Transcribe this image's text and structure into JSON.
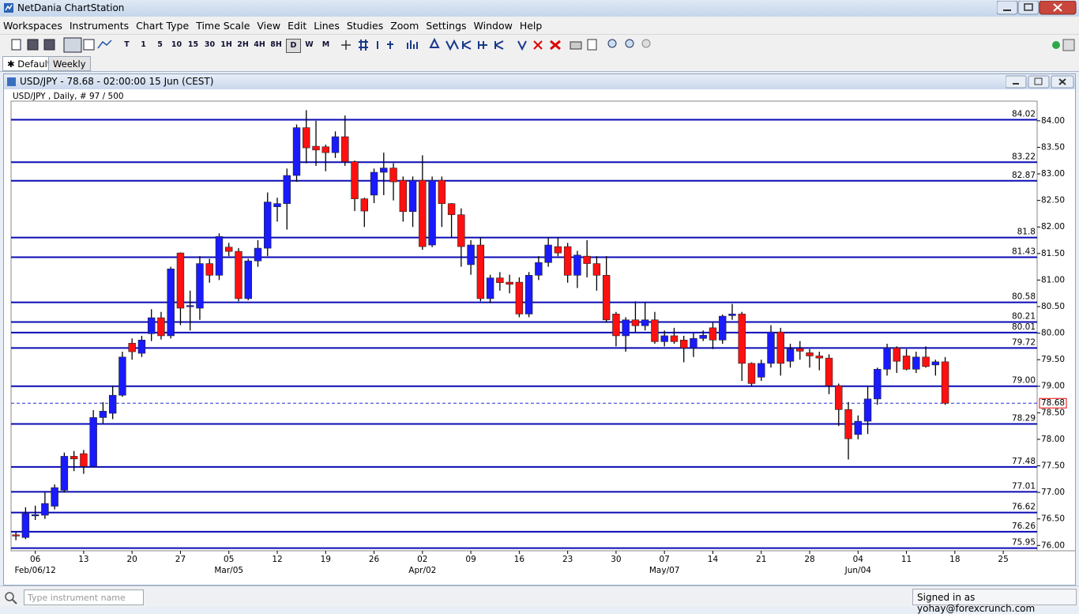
{
  "window": {
    "title": "NetDania ChartStation"
  },
  "menu": [
    "Workspaces",
    "Instruments",
    "Chart Type",
    "Time Scale",
    "View",
    "Edit",
    "Lines",
    "Studies",
    "Zoom",
    "Settings",
    "Window",
    "Help"
  ],
  "toolbar": {
    "timeframes": [
      "T",
      "1",
      "5",
      "10",
      "15",
      "30",
      "1H",
      "2H",
      "4H",
      "8H",
      "D",
      "W",
      "M"
    ]
  },
  "tabs": [
    "Default",
    "Weekly"
  ],
  "chart_window": {
    "title": "USD/JPY - 78.68 - 02:00:00 15 Jun (CEST)"
  },
  "chart_data": {
    "type": "candlestick",
    "subtitle": "USD/JPY , Daily, # 97 / 500",
    "up_color": "#1a1aff",
    "down_color": "#ff1010",
    "level_color": "#0a0ab4",
    "ylim": [
      75.9,
      84.37
    ],
    "yticks": [
      {
        "value": 76,
        "label": "76.00"
      },
      {
        "value": 76.5,
        "label": "76.50"
      },
      {
        "value": 77,
        "label": "77.00"
      },
      {
        "value": 77.5,
        "label": "77.50"
      },
      {
        "value": 78,
        "label": "78.00"
      },
      {
        "value": 78.5,
        "label": "78.50"
      },
      {
        "value": 79,
        "label": "79.00"
      },
      {
        "value": 79.5,
        "label": "79.50"
      },
      {
        "value": 80,
        "label": "80.00"
      },
      {
        "value": 80.5,
        "label": "80.50"
      },
      {
        "value": 81,
        "label": "81.00"
      },
      {
        "value": 81.5,
        "label": "81.50"
      },
      {
        "value": 82,
        "label": "82.00"
      },
      {
        "value": 82.5,
        "label": "82.50"
      },
      {
        "value": 83,
        "label": "83.00"
      },
      {
        "value": 83.5,
        "label": "83.50"
      },
      {
        "value": 84,
        "label": "84.00"
      }
    ],
    "levels": [
      84.02,
      83.22,
      82.87,
      81.8,
      81.43,
      80.58,
      80.21,
      80.01,
      79.72,
      {
        "value": 79,
        "label": "79.00"
      },
      78.29,
      77.48,
      77.01,
      76.62,
      76.26,
      75.95
    ],
    "last_price": 78.68,
    "categories": [
      null,
      null,
      "06",
      null,
      null,
      null,
      null,
      "13",
      null,
      null,
      null,
      null,
      "20",
      null,
      null,
      null,
      null,
      "27",
      null,
      null,
      null,
      null,
      "05",
      null,
      null,
      null,
      null,
      "12",
      null,
      null,
      null,
      null,
      "19",
      null,
      null,
      null,
      null,
      "26",
      null,
      null,
      null,
      null,
      "02",
      null,
      null,
      null,
      null,
      "09",
      null,
      null,
      null,
      null,
      "16",
      null,
      null,
      null,
      null,
      "23",
      null,
      null,
      null,
      null,
      "30",
      null,
      null,
      null,
      null,
      "07",
      null,
      null,
      null,
      null,
      "14",
      null,
      null,
      null,
      null,
      "21",
      null,
      null,
      null,
      null,
      "28",
      null,
      null,
      null,
      null,
      "04",
      null,
      null,
      null,
      null,
      "11",
      null,
      null,
      null,
      null,
      "18",
      null,
      null,
      null,
      null,
      "25",
      null,
      null,
      null
    ],
    "category_groups": [
      null,
      null,
      "Feb/06/12",
      null,
      null,
      null,
      null,
      null,
      null,
      null,
      null,
      null,
      null,
      null,
      null,
      null,
      null,
      null,
      null,
      null,
      null,
      null,
      "Mar/05",
      null,
      null,
      null,
      null,
      null,
      null,
      null,
      null,
      null,
      null,
      null,
      null,
      null,
      null,
      null,
      null,
      null,
      null,
      null,
      "Apr/02",
      null,
      null,
      null,
      null,
      null,
      null,
      null,
      null,
      null,
      null,
      null,
      null,
      null,
      null,
      null,
      null,
      null,
      null,
      null,
      null,
      null,
      null,
      null,
      null,
      "May/07",
      null,
      null,
      null,
      null,
      null,
      null,
      null,
      null,
      null,
      null,
      null,
      null,
      null,
      null,
      null,
      null,
      null,
      null,
      null,
      "Jun/04",
      null,
      null,
      null,
      null,
      null,
      null,
      null,
      null,
      null,
      null,
      null,
      null,
      null,
      null,
      null,
      null,
      null,
      null
    ],
    "open": [
      76.2,
      76.15,
      76.57,
      76.57,
      76.74,
      77.04,
      77.68,
      77.73,
      77.49,
      78.41,
      78.49,
      78.83,
      79.81,
      79.62,
      79.99,
      80.29,
      79.95,
      81.51,
      80.5,
      80.47,
      81.31,
      81.09,
      81.62,
      81.54,
      80.65,
      81.36,
      81.6,
      82.38,
      82.44,
      82.97,
      83.87,
      83.52,
      83.51,
      83.4,
      83.7,
      83.23,
      82.53,
      82.6,
      83.03,
      83.11,
      82.88,
      82.29,
      82.88,
      81.66,
      82.88,
      82.44,
      82.23,
      81.29,
      81.66,
      80.65,
      81.04,
      80.96,
      80.96,
      80.36,
      81.09,
      81.33,
      81.63,
      81.63,
      81.09,
      81.45,
      81.31,
      81.09,
      80.36,
      79.95,
      80.25,
      80.14,
      80.25,
      79.84,
      79.95,
      79.87,
      79.72,
      79.9,
      80.1,
      79.87,
      80.33,
      80.36,
      79.43,
      79.17,
      79.43,
      80.02,
      79.47,
      79.71,
      79.63,
      79.57,
      79.53,
      79.01,
      78.56,
      78.09,
      78.34,
      78.76,
      79.32,
      79.72,
      79.57,
      79.32,
      79.55,
      79.4,
      79.46,
      null,
      null,
      null,
      null,
      null,
      null,
      null,
      null,
      null
    ],
    "high": [
      76.25,
      76.72,
      76.75,
      77.0,
      77.15,
      77.75,
      77.78,
      77.8,
      78.55,
      78.7,
      79.0,
      79.65,
      79.9,
      79.95,
      80.45,
      80.4,
      81.25,
      81.52,
      80.8,
      81.45,
      81.4,
      81.88,
      81.7,
      81.6,
      81.4,
      81.75,
      82.65,
      82.55,
      83.1,
      83.93,
      84.2,
      84.0,
      83.55,
      83.8,
      84.1,
      83.25,
      82.55,
      83.1,
      83.4,
      83.2,
      82.95,
      82.95,
      83.35,
      82.95,
      82.95,
      82.45,
      82.35,
      81.75,
      81.8,
      81.1,
      81.15,
      81.1,
      81.05,
      81.15,
      81.45,
      81.8,
      81.8,
      81.7,
      81.55,
      81.75,
      81.45,
      81.45,
      80.4,
      80.3,
      80.6,
      80.58,
      80.4,
      80.05,
      80.1,
      79.95,
      80.0,
      80.05,
      80.2,
      80.35,
      80.55,
      80.4,
      79.45,
      79.5,
      80.15,
      80.1,
      79.8,
      79.85,
      79.7,
      79.65,
      79.6,
      79.05,
      78.7,
      78.45,
      79.0,
      79.35,
      79.8,
      79.75,
      79.7,
      79.65,
      79.75,
      79.5,
      79.55,
      null,
      null,
      null,
      null,
      null,
      null,
      null,
      null,
      null
    ],
    "low": [
      76.1,
      76.12,
      76.48,
      76.5,
      76.68,
      77.0,
      77.4,
      77.35,
      77.48,
      78.3,
      78.38,
      78.8,
      79.5,
      79.55,
      79.85,
      79.88,
      79.9,
      80.15,
      80.05,
      80.25,
      80.95,
      81.0,
      81.45,
      80.6,
      80.62,
      81.25,
      81.45,
      82.1,
      81.95,
      82.85,
      83.2,
      83.15,
      83.05,
      83.3,
      83.15,
      82.3,
      82.0,
      82.45,
      82.6,
      82.5,
      82.1,
      82.0,
      81.57,
      81.62,
      82.0,
      81.8,
      81.25,
      81.1,
      80.6,
      80.57,
      80.8,
      80.75,
      80.3,
      80.3,
      81.0,
      81.25,
      81.45,
      80.95,
      80.85,
      81.05,
      80.8,
      80.2,
      79.75,
      79.65,
      80.0,
      80.05,
      79.8,
      79.75,
      79.8,
      79.45,
      79.55,
      79.85,
      79.7,
      79.8,
      80.25,
      79.1,
      79.0,
      79.1,
      79.35,
      79.2,
      79.35,
      79.5,
      79.35,
      79.3,
      78.85,
      78.25,
      77.62,
      78.0,
      78.1,
      78.65,
      79.2,
      79.25,
      79.3,
      79.25,
      79.35,
      79.2,
      78.65,
      null,
      null,
      null,
      null,
      null,
      null,
      null,
      null,
      null
    ],
    "close": [
      76.19,
      76.6,
      76.58,
      76.79,
      77.09,
      77.68,
      77.63,
      77.49,
      78.41,
      78.53,
      78.83,
      79.55,
      79.65,
      79.87,
      80.29,
      79.95,
      81.21,
      80.47,
      80.52,
      81.31,
      81.09,
      81.82,
      81.54,
      80.65,
      81.36,
      81.6,
      82.47,
      82.44,
      82.97,
      83.87,
      83.49,
      83.45,
      83.4,
      83.7,
      83.23,
      82.53,
      82.3,
      83.03,
      83.11,
      82.85,
      82.29,
      82.88,
      81.63,
      82.88,
      82.44,
      82.23,
      81.63,
      81.66,
      80.65,
      81.04,
      80.95,
      80.92,
      80.36,
      81.09,
      81.33,
      81.66,
      81.51,
      81.09,
      81.47,
      81.31,
      81.09,
      80.25,
      79.95,
      80.25,
      80.14,
      80.25,
      79.84,
      79.95,
      79.84,
      79.72,
      79.9,
      79.96,
      79.87,
      80.32,
      80.36,
      79.43,
      79.05,
      79.43,
      80.02,
      79.43,
      79.7,
      79.66,
      79.57,
      79.53,
      79.01,
      78.56,
      78.01,
      78.34,
      78.76,
      79.32,
      79.72,
      79.47,
      79.32,
      79.55,
      79.37,
      79.46,
      78.68,
      null,
      null,
      null,
      null,
      null,
      null,
      null,
      null,
      null
    ]
  },
  "status": {
    "input_placeholder": "Type instrument name",
    "signed_in": "Signed in as yohay@forexcrunch.com"
  }
}
